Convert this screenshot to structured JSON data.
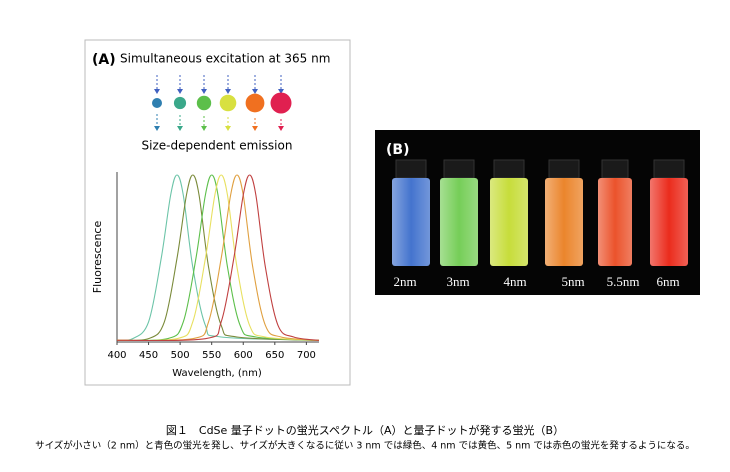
{
  "panel_a": {
    "label": "(A)",
    "excitation": "Simultaneous excitation at 365 nm",
    "emission": "Size-dependent emission",
    "chart_data": {
      "type": "line",
      "xlabel": "Wavelength, (nm)",
      "ylabel": "Fluorescence",
      "xlim": [
        400,
        720
      ],
      "ylim": [
        0,
        1
      ],
      "xticks": [
        400,
        450,
        500,
        550,
        600,
        650,
        700
      ],
      "series": [
        {
          "color": "#6cc4a8",
          "x": [
            400,
            425,
            450,
            470,
            485,
            495,
            505,
            520,
            540,
            565,
            720
          ],
          "values": [
            0.01,
            0.02,
            0.12,
            0.5,
            0.88,
            1,
            0.88,
            0.45,
            0.1,
            0.03,
            0.01
          ]
        },
        {
          "color": "#7a8a3a",
          "x": [
            400,
            450,
            475,
            495,
            510,
            520,
            530,
            545,
            565,
            590,
            720
          ],
          "values": [
            0.01,
            0.02,
            0.12,
            0.5,
            0.88,
            1,
            0.88,
            0.45,
            0.1,
            0.03,
            0.01
          ]
        },
        {
          "color": "#5cbf4a",
          "x": [
            400,
            480,
            505,
            525,
            540,
            550,
            560,
            575,
            595,
            620,
            720
          ],
          "values": [
            0.01,
            0.02,
            0.12,
            0.5,
            0.88,
            1,
            0.88,
            0.45,
            0.1,
            0.03,
            0.01
          ]
        },
        {
          "color": "#e8e060",
          "x": [
            400,
            495,
            520,
            540,
            555,
            565,
            575,
            590,
            610,
            635,
            720
          ],
          "values": [
            0.01,
            0.02,
            0.12,
            0.5,
            0.88,
            1,
            0.88,
            0.45,
            0.1,
            0.03,
            0.01
          ]
        },
        {
          "color": "#e0a040",
          "x": [
            400,
            520,
            545,
            565,
            580,
            590,
            600,
            615,
            635,
            660,
            720
          ],
          "values": [
            0.01,
            0.02,
            0.12,
            0.5,
            0.88,
            1,
            0.88,
            0.45,
            0.1,
            0.03,
            0.01
          ]
        },
        {
          "color": "#c04040",
          "x": [
            400,
            540,
            565,
            585,
            600,
            610,
            620,
            635,
            655,
            680,
            720
          ],
          "values": [
            0.01,
            0.02,
            0.12,
            0.5,
            0.88,
            1,
            0.88,
            0.45,
            0.1,
            0.03,
            0.01
          ]
        }
      ]
    }
  },
  "panel_b": {
    "label": "(B)",
    "sizes": [
      "2nm",
      "3nm",
      "4nm",
      "5nm",
      "5.5nm",
      "6nm"
    ]
  },
  "caption": {
    "title": "図１　CdSe 量子ドットの蛍光スペクトル（A）と量子ドットが発する蛍光（B）",
    "text": "サイズが小さい（2 nm）と青色の蛍光を発し、サイズが大きくなるに従い 3 nm では緑色、4 nm では黄色、5 nm では赤色の蛍光を発するようになる。"
  }
}
